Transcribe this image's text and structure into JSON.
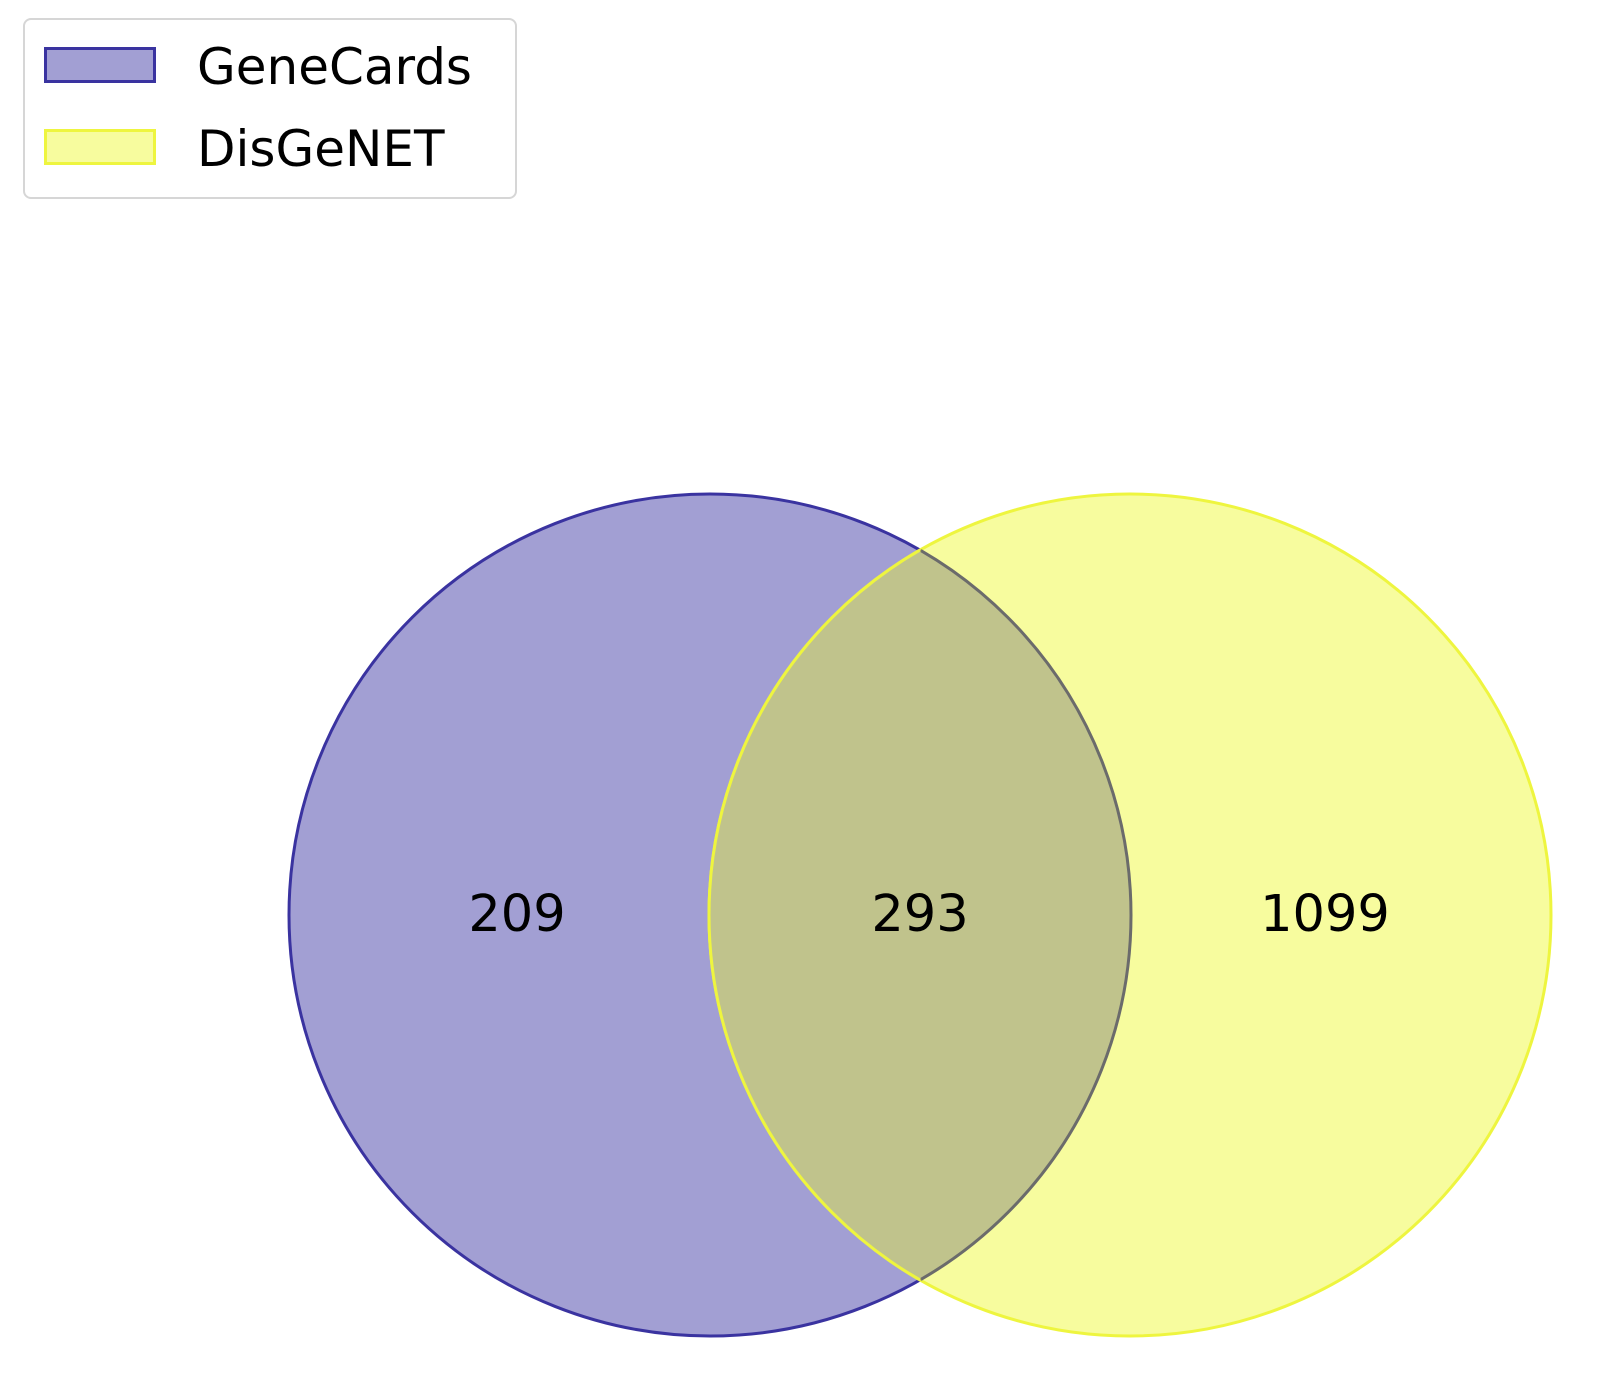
{
  "legend": {
    "entries": [
      {
        "label": "GeneCards",
        "fill": "#a29fd3",
        "stroke": "#3a33a0"
      },
      {
        "label": "DisGeNET",
        "fill": "#f7fc9e",
        "stroke": "#eef53f"
      }
    ]
  },
  "venn": {
    "sets": [
      {
        "name": "GeneCards",
        "fill": "#a29fd3",
        "stroke": "#3a33a0"
      },
      {
        "name": "DisGeNET",
        "fill": "#f7fc9e",
        "stroke": "#eef53f"
      }
    ],
    "overlap_fill": "#c0c38c",
    "overlap_stroke": "#6b6b6b",
    "regions": {
      "genecards_only": "209",
      "intersection": "293",
      "disgenet_only": "1099"
    }
  }
}
